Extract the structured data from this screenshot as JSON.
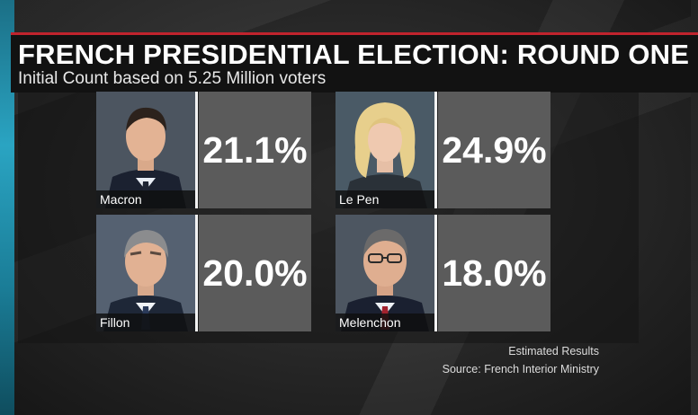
{
  "header": {
    "title": "FRENCH PRESIDENTIAL ELECTION: ROUND ONE",
    "subtitle": "Initial Count based on 5.25 Million voters"
  },
  "candidates": [
    {
      "name": "Macron",
      "percent": "21.1%"
    },
    {
      "name": "Le Pen",
      "percent": "24.9%"
    },
    {
      "name": "Fillon",
      "percent": "20.0%"
    },
    {
      "name": "Melenchon",
      "percent": "18.0%"
    }
  ],
  "footer": {
    "estimated": "Estimated Results",
    "source": "Source: French Interior Ministry"
  },
  "colors": {
    "accent_red": "#c0232d",
    "side_strip": "#2aa4c2",
    "pct_box": "#5b5b5b"
  }
}
